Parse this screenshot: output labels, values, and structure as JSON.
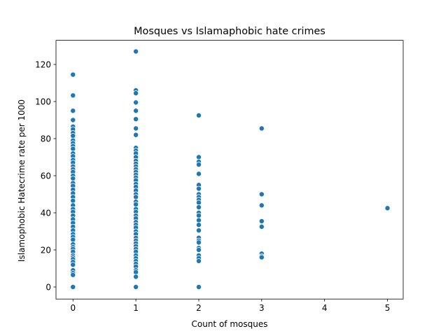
{
  "chart_data": {
    "type": "scatter",
    "title": "Mosques vs Islamaphobic hate crimes",
    "xlabel": "Count of mosques",
    "ylabel": "Islamophobic Hatecrime rate per 1000",
    "xlim": [
      -0.27,
      5.25
    ],
    "ylim": [
      -6.5,
      133
    ],
    "xticks": [
      0,
      1,
      2,
      3,
      4,
      5
    ],
    "yticks": [
      0,
      20,
      40,
      60,
      80,
      100,
      120
    ],
    "grid": false,
    "legend": "none",
    "marker_color": "#1f77b4",
    "series": [
      {
        "points": [
          [
            0,
            114.5
          ],
          [
            0,
            103.3
          ],
          [
            0,
            95.0
          ],
          [
            0,
            90.0
          ],
          [
            0,
            86.5
          ],
          [
            0,
            85.0
          ],
          [
            0,
            83.0
          ],
          [
            0,
            81.5
          ],
          [
            0,
            79.0
          ],
          [
            0,
            77.5
          ],
          [
            0,
            76.0
          ],
          [
            0,
            74.5
          ],
          [
            0,
            72.0
          ],
          [
            0,
            70.5
          ],
          [
            0,
            68.5
          ],
          [
            0,
            67.0
          ],
          [
            0,
            65.0
          ],
          [
            0,
            63.5
          ],
          [
            0,
            62.0
          ],
          [
            0,
            60.0
          ],
          [
            0,
            58.5
          ],
          [
            0,
            56.0
          ],
          [
            0,
            54.5
          ],
          [
            0,
            52.5
          ],
          [
            0,
            50.5
          ],
          [
            0,
            48.5
          ],
          [
            0,
            46.5
          ],
          [
            0,
            44.0
          ],
          [
            0,
            42.0
          ],
          [
            0,
            40.5
          ],
          [
            0,
            38.5
          ],
          [
            0,
            36.5
          ],
          [
            0,
            34.5
          ],
          [
            0,
            32.5
          ],
          [
            0,
            30.5
          ],
          [
            0,
            28.5
          ],
          [
            0,
            27.0
          ],
          [
            0,
            25.5
          ],
          [
            0,
            23.0
          ],
          [
            0,
            21.5
          ],
          [
            0,
            20.5
          ],
          [
            0,
            19.0
          ],
          [
            0,
            17.0
          ],
          [
            0,
            16.0
          ],
          [
            0,
            15.0
          ],
          [
            0,
            13.5
          ],
          [
            0,
            12.0
          ],
          [
            0,
            9.0
          ],
          [
            0,
            7.5
          ],
          [
            0,
            6.5
          ],
          [
            0,
            0.0
          ],
          [
            1,
            127.0
          ],
          [
            1,
            106.0
          ],
          [
            1,
            104.5
          ],
          [
            1,
            99.5
          ],
          [
            1,
            95.0
          ],
          [
            1,
            90.5
          ],
          [
            1,
            85.5
          ],
          [
            1,
            82.0
          ],
          [
            1,
            75.0
          ],
          [
            1,
            73.5
          ],
          [
            1,
            72.0
          ],
          [
            1,
            70.0
          ],
          [
            1,
            68.0
          ],
          [
            1,
            66.5
          ],
          [
            1,
            65.0
          ],
          [
            1,
            63.5
          ],
          [
            1,
            62.0
          ],
          [
            1,
            60.5
          ],
          [
            1,
            59.0
          ],
          [
            1,
            57.5
          ],
          [
            1,
            55.5
          ],
          [
            1,
            54.0
          ],
          [
            1,
            52.0
          ],
          [
            1,
            50.0
          ],
          [
            1,
            48.5
          ],
          [
            1,
            46.0
          ],
          [
            1,
            44.5
          ],
          [
            1,
            42.0
          ],
          [
            1,
            40.5
          ],
          [
            1,
            38.5
          ],
          [
            1,
            37.0
          ],
          [
            1,
            35.0
          ],
          [
            1,
            33.5
          ],
          [
            1,
            32.0
          ],
          [
            1,
            30.0
          ],
          [
            1,
            28.5
          ],
          [
            1,
            26.5
          ],
          [
            1,
            25.0
          ],
          [
            1,
            23.5
          ],
          [
            1,
            22.0
          ],
          [
            1,
            20.5
          ],
          [
            1,
            19.0
          ],
          [
            1,
            17.0
          ],
          [
            1,
            15.5
          ],
          [
            1,
            14.0
          ],
          [
            1,
            12.5
          ],
          [
            1,
            11.0
          ],
          [
            1,
            9.0
          ],
          [
            1,
            8.0
          ],
          [
            1,
            5.5
          ],
          [
            1,
            0.0
          ],
          [
            2,
            92.5
          ],
          [
            2,
            70.0
          ],
          [
            2,
            67.5
          ],
          [
            2,
            66.0
          ],
          [
            2,
            61.0
          ],
          [
            2,
            55.0
          ],
          [
            2,
            53.0
          ],
          [
            2,
            50.0
          ],
          [
            2,
            48.5
          ],
          [
            2,
            47.0
          ],
          [
            2,
            45.5
          ],
          [
            2,
            43.0
          ],
          [
            2,
            40.0
          ],
          [
            2,
            38.5
          ],
          [
            2,
            36.0
          ],
          [
            2,
            33.5
          ],
          [
            2,
            30.5
          ],
          [
            2,
            26.5
          ],
          [
            2,
            25.0
          ],
          [
            2,
            24.0
          ],
          [
            2,
            21.0
          ],
          [
            2,
            20.0
          ],
          [
            2,
            17.0
          ],
          [
            2,
            15.5
          ],
          [
            2,
            14.0
          ],
          [
            2,
            0.0
          ],
          [
            3,
            85.5
          ],
          [
            3,
            50.0
          ],
          [
            3,
            44.0
          ],
          [
            3,
            35.5
          ],
          [
            3,
            32.5
          ],
          [
            3,
            18.0
          ],
          [
            3,
            16.5
          ],
          [
            3,
            16.0
          ],
          [
            5,
            42.5
          ]
        ]
      }
    ]
  }
}
